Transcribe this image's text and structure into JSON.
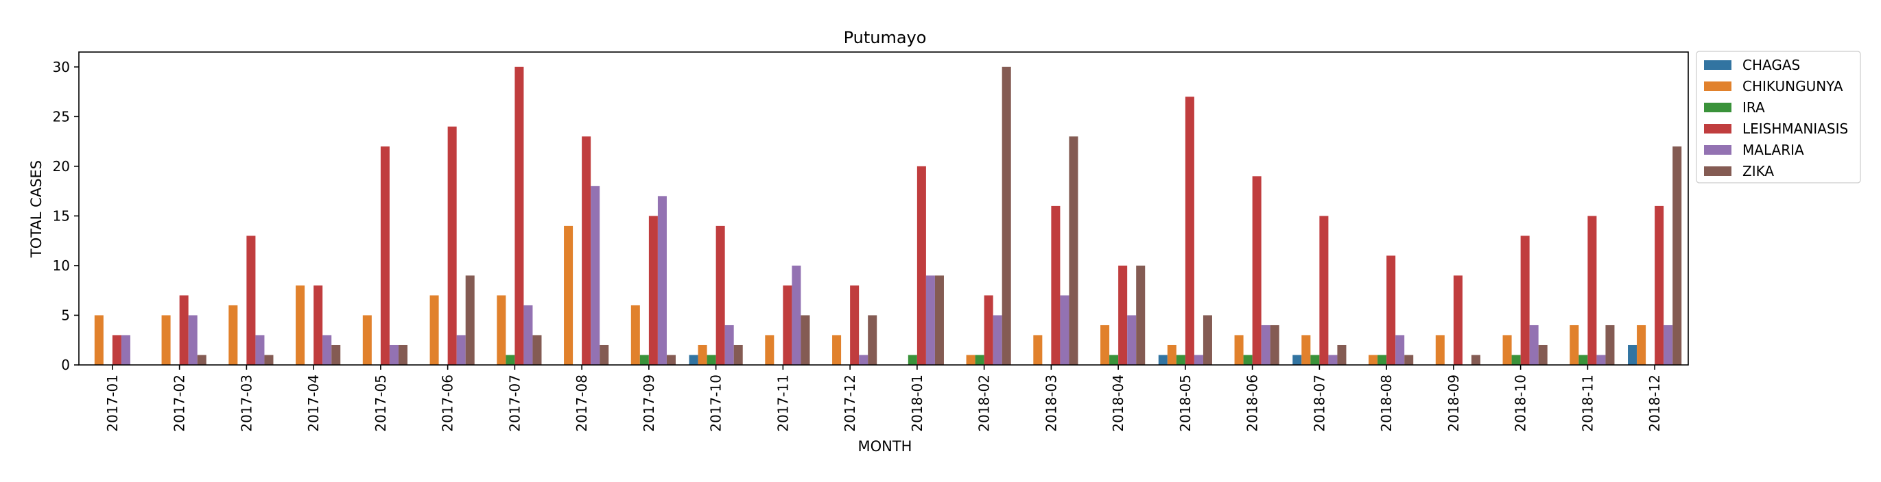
{
  "chart_data": {
    "type": "bar",
    "title": "Putumayo",
    "xlabel": "MONTH",
    "ylabel": "TOTAL CASES",
    "ylim": [
      0,
      31.5
    ],
    "yticks": [
      0,
      5,
      10,
      15,
      20,
      25,
      30
    ],
    "grid": false,
    "legend_position": "outside top-right",
    "categories": [
      "2017-01",
      "2017-02",
      "2017-03",
      "2017-04",
      "2017-05",
      "2017-06",
      "2017-07",
      "2017-08",
      "2017-09",
      "2017-10",
      "2017-11",
      "2017-12",
      "2018-01",
      "2018-02",
      "2018-03",
      "2018-04",
      "2018-05",
      "2018-06",
      "2018-07",
      "2018-08",
      "2018-09",
      "2018-10",
      "2018-11",
      "2018-12"
    ],
    "series": [
      {
        "name": "CHAGAS",
        "color": "#3274a1",
        "values": [
          0,
          0,
          0,
          0,
          0,
          0,
          0,
          0,
          0,
          1,
          0,
          0,
          0,
          0,
          0,
          0,
          1,
          0,
          1,
          0,
          0,
          0,
          0,
          2
        ]
      },
      {
        "name": "CHIKUNGUNYA",
        "color": "#e1812c",
        "values": [
          5,
          5,
          6,
          8,
          5,
          7,
          7,
          14,
          6,
          2,
          3,
          3,
          0,
          1,
          3,
          4,
          2,
          3,
          3,
          1,
          3,
          3,
          4,
          4
        ]
      },
      {
        "name": "IRA",
        "color": "#3a923a",
        "values": [
          0,
          0,
          0,
          0,
          0,
          0,
          1,
          0,
          1,
          1,
          0,
          0,
          1,
          1,
          0,
          1,
          1,
          1,
          1,
          1,
          0,
          1,
          1,
          0
        ]
      },
      {
        "name": "LEISHMANIASIS",
        "color": "#c03d3e",
        "values": [
          3,
          7,
          13,
          8,
          22,
          24,
          30,
          23,
          15,
          14,
          8,
          8,
          20,
          7,
          16,
          10,
          27,
          19,
          15,
          11,
          9,
          13,
          15,
          16
        ]
      },
      {
        "name": "MALARIA",
        "color": "#9372b2",
        "values": [
          3,
          5,
          3,
          3,
          2,
          3,
          6,
          18,
          17,
          4,
          10,
          1,
          9,
          5,
          7,
          5,
          1,
          4,
          1,
          3,
          0,
          4,
          1,
          4
        ]
      },
      {
        "name": "ZIKA",
        "color": "#845b53",
        "values": [
          0,
          1,
          1,
          2,
          2,
          9,
          3,
          2,
          1,
          2,
          5,
          5,
          9,
          30,
          23,
          10,
          5,
          4,
          2,
          1,
          1,
          2,
          4,
          22
        ]
      }
    ]
  }
}
